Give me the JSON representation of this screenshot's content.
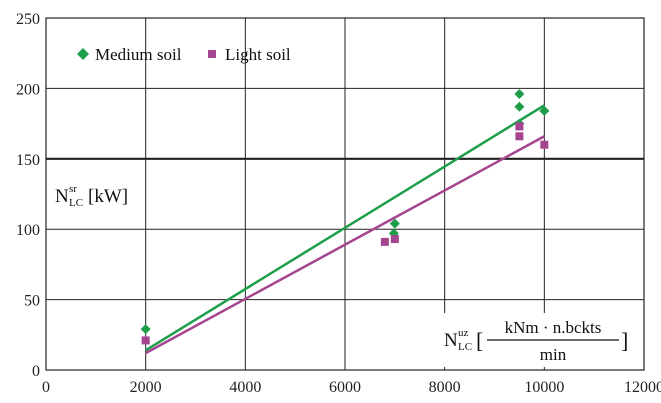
{
  "chart_data": {
    "type": "scatter",
    "title": "",
    "xlim": [
      0,
      12000
    ],
    "ylim": [
      0,
      250
    ],
    "x_ticks": [
      "0",
      "2000",
      "4000",
      "6000",
      "8000",
      "10000",
      "12000"
    ],
    "y_ticks": [
      "0",
      "50",
      "100",
      "150",
      "200",
      "250"
    ],
    "grid": true,
    "legend_placement": "top-left",
    "ylabel": {
      "main": "N",
      "sup": "sr",
      "sub": "LC",
      "unit": "[kW]"
    },
    "xlabel": {
      "main": "N",
      "sup": "uz",
      "sub": "LC",
      "open": "[",
      "numerator": "kNm · n.bckts",
      "denominator": "min",
      "close": "]"
    },
    "series": [
      {
        "name": "Medium soil",
        "marker": "diamond",
        "color": "#1f9e4a",
        "points": [
          [
            2000,
            29
          ],
          [
            6980,
            97
          ],
          [
            7000,
            104
          ],
          [
            9500,
            196
          ],
          [
            9500,
            187
          ],
          [
            9500,
            175
          ],
          [
            10000,
            184
          ]
        ],
        "fit": [
          [
            2000,
            14
          ],
          [
            10000,
            188
          ]
        ]
      },
      {
        "name": "Light soil",
        "marker": "square",
        "color": "#a5448f",
        "points": [
          [
            2000,
            21
          ],
          [
            6800,
            91
          ],
          [
            7000,
            93
          ],
          [
            9500,
            173
          ],
          [
            9500,
            166
          ],
          [
            10000,
            160
          ]
        ],
        "fit": [
          [
            2000,
            12
          ],
          [
            10000,
            166
          ]
        ]
      }
    ]
  }
}
